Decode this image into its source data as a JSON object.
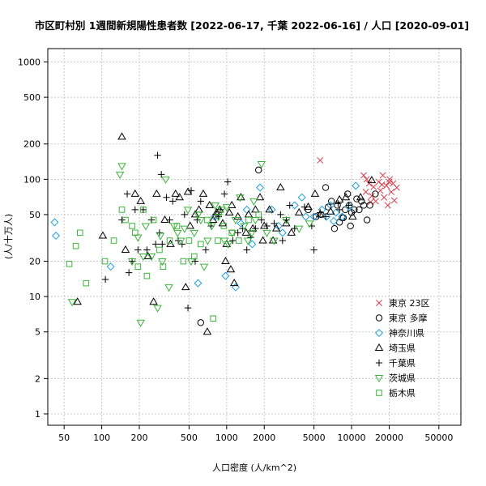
{
  "chart_data": {
    "type": "scatter",
    "title": "市区町村別 1週間新規陽性患者数 [2022-06-17, 千葉 2022-06-16] / 人口 [2020-09-01]",
    "xlabel": "人口密度 (人/km^2)",
    "ylabel": "(人/十万人)",
    "x_scale": "log",
    "y_scale": "log",
    "xlim": [
      37,
      75000
    ],
    "ylim": [
      0.8,
      1300
    ],
    "x_ticks": [
      50,
      100,
      200,
      500,
      1000,
      2000,
      5000,
      10000,
      20000,
      50000
    ],
    "x_tick_labels": [
      "50",
      "100",
      "200",
      "500",
      "1000",
      "2000",
      "5000",
      "10000",
      "20000",
      "50000"
    ],
    "y_ticks": [
      1,
      2,
      5,
      10,
      20,
      50,
      100,
      200,
      500,
      1000
    ],
    "y_tick_labels": [
      "1",
      "2",
      "5",
      "10",
      "20",
      "50",
      "100",
      "200",
      "500",
      "1000"
    ],
    "grid": true,
    "legend_position": "bottom-right",
    "series": [
      {
        "name": "東京 23区",
        "marker": "x",
        "color": "#d6404e",
        "points": [
          [
            5600,
            145
          ],
          [
            12500,
            108
          ],
          [
            13200,
            100
          ],
          [
            13800,
            92
          ],
          [
            14500,
            72
          ],
          [
            15000,
            86
          ],
          [
            15600,
            65
          ],
          [
            16500,
            95
          ],
          [
            17000,
            80
          ],
          [
            17800,
            108
          ],
          [
            18200,
            70
          ],
          [
            19000,
            88
          ],
          [
            19500,
            60
          ],
          [
            20200,
            100
          ],
          [
            20800,
            78
          ],
          [
            21500,
            92
          ],
          [
            22000,
            66
          ],
          [
            23000,
            85
          ],
          [
            13000,
            78
          ],
          [
            14200,
            64
          ],
          [
            17500,
            90
          ],
          [
            20000,
            95
          ]
        ]
      },
      {
        "name": "東京 多摩",
        "marker": "circle",
        "color": "#000000",
        "points": [
          [
            620,
            6
          ],
          [
            1800,
            120
          ],
          [
            4500,
            55
          ],
          [
            5200,
            48
          ],
          [
            5700,
            50
          ],
          [
            6200,
            85
          ],
          [
            6500,
            58
          ],
          [
            6900,
            65
          ],
          [
            7300,
            38
          ],
          [
            7700,
            60
          ],
          [
            8000,
            43
          ],
          [
            8400,
            47
          ],
          [
            8900,
            55
          ],
          [
            9300,
            75
          ],
          [
            9600,
            60
          ],
          [
            10000,
            52
          ],
          [
            10500,
            55
          ],
          [
            11000,
            68
          ],
          [
            11500,
            55
          ],
          [
            12000,
            65
          ],
          [
            12500,
            60
          ],
          [
            13300,
            45
          ],
          [
            14000,
            60
          ],
          [
            15500,
            75
          ],
          [
            9800,
            40
          ],
          [
            8600,
            47
          ]
        ]
      },
      {
        "name": "神奈川県",
        "marker": "diamond",
        "color": "#1e9ee0",
        "points": [
          [
            42,
            43
          ],
          [
            43,
            33
          ],
          [
            118,
            18
          ],
          [
            590,
            13
          ],
          [
            800,
            48
          ],
          [
            980,
            15
          ],
          [
            1180,
            12
          ],
          [
            1300,
            42
          ],
          [
            1600,
            28
          ],
          [
            1850,
            85
          ],
          [
            2300,
            55
          ],
          [
            2800,
            35
          ],
          [
            3500,
            60
          ],
          [
            4000,
            70
          ],
          [
            4300,
            48
          ],
          [
            5000,
            48
          ],
          [
            5800,
            55
          ],
          [
            6300,
            48
          ],
          [
            6800,
            60
          ],
          [
            7500,
            52
          ],
          [
            8400,
            48
          ],
          [
            9600,
            58
          ],
          [
            10800,
            88
          ],
          [
            1450,
            55
          ],
          [
            2600,
            40
          ],
          [
            7200,
            44
          ]
        ]
      },
      {
        "name": "埼玉県",
        "marker": "triangle",
        "color": "#000000",
        "points": [
          [
            64,
            9
          ],
          [
            102,
            33
          ],
          [
            145,
            230
          ],
          [
            155,
            25
          ],
          [
            185,
            75
          ],
          [
            205,
            65
          ],
          [
            235,
            22
          ],
          [
            260,
            9
          ],
          [
            275,
            75
          ],
          [
            320,
            45
          ],
          [
            355,
            28
          ],
          [
            390,
            75
          ],
          [
            420,
            70
          ],
          [
            470,
            12
          ],
          [
            490,
            78
          ],
          [
            510,
            40
          ],
          [
            560,
            50
          ],
          [
            600,
            55
          ],
          [
            650,
            75
          ],
          [
            700,
            5
          ],
          [
            730,
            60
          ],
          [
            780,
            45
          ],
          [
            830,
            52
          ],
          [
            880,
            55
          ],
          [
            930,
            42
          ],
          [
            980,
            20
          ],
          [
            1000,
            28
          ],
          [
            1050,
            52
          ],
          [
            1080,
            17
          ],
          [
            1100,
            60
          ],
          [
            1150,
            13
          ],
          [
            1230,
            48
          ],
          [
            1300,
            70
          ],
          [
            1430,
            35
          ],
          [
            1500,
            50
          ],
          [
            1620,
            38
          ],
          [
            1700,
            55
          ],
          [
            1850,
            70
          ],
          [
            2000,
            40
          ],
          [
            2200,
            55
          ],
          [
            2500,
            38
          ],
          [
            2700,
            85
          ],
          [
            3000,
            42
          ],
          [
            3300,
            35
          ],
          [
            3800,
            52
          ],
          [
            4500,
            58
          ],
          [
            5100,
            75
          ],
          [
            5600,
            50
          ],
          [
            6800,
            53
          ],
          [
            8000,
            67
          ],
          [
            9000,
            70
          ],
          [
            10200,
            48
          ],
          [
            11800,
            70
          ],
          [
            14500,
            98
          ],
          [
            1950,
            30
          ],
          [
            2350,
            30
          ]
        ]
      },
      {
        "name": "千葉県",
        "marker": "plus",
        "color": "#000000",
        "points": [
          [
            107,
            14
          ],
          [
            145,
            45
          ],
          [
            160,
            75
          ],
          [
            165,
            16
          ],
          [
            175,
            20
          ],
          [
            185,
            55
          ],
          [
            195,
            25
          ],
          [
            215,
            55
          ],
          [
            230,
            25
          ],
          [
            250,
            45
          ],
          [
            270,
            28
          ],
          [
            280,
            160
          ],
          [
            290,
            35
          ],
          [
            305,
            28
          ],
          [
            330,
            70
          ],
          [
            350,
            45
          ],
          [
            370,
            65
          ],
          [
            410,
            30
          ],
          [
            440,
            28
          ],
          [
            460,
            50
          ],
          [
            490,
            8
          ],
          [
            520,
            80
          ],
          [
            560,
            20
          ],
          [
            620,
            65
          ],
          [
            680,
            25
          ],
          [
            750,
            40
          ],
          [
            820,
            50
          ],
          [
            890,
            55
          ],
          [
            960,
            75
          ],
          [
            1020,
            95
          ],
          [
            1120,
            30
          ],
          [
            1230,
            35
          ],
          [
            1340,
            38
          ],
          [
            1450,
            25
          ],
          [
            1560,
            32
          ],
          [
            1700,
            38
          ],
          [
            1900,
            45
          ],
          [
            2100,
            40
          ],
          [
            2400,
            42
          ],
          [
            2700,
            50
          ],
          [
            3000,
            45
          ],
          [
            3500,
            38
          ],
          [
            4200,
            58
          ],
          [
            5000,
            25
          ],
          [
            6200,
            48
          ],
          [
            8000,
            55
          ],
          [
            9500,
            60
          ],
          [
            5600,
            52
          ],
          [
            7800,
            62
          ],
          [
            4800,
            40
          ],
          [
            3200,
            60
          ],
          [
            2800,
            30
          ],
          [
            860,
            48
          ],
          [
            580,
            45
          ],
          [
            300,
            110
          ]
        ]
      },
      {
        "name": "茨城県",
        "marker": "triangle-down",
        "color": "#3cb43c",
        "points": [
          [
            58,
            9
          ],
          [
            140,
            110
          ],
          [
            145,
            130
          ],
          [
            175,
            20
          ],
          [
            195,
            32
          ],
          [
            205,
            6
          ],
          [
            215,
            22
          ],
          [
            225,
            40
          ],
          [
            250,
            22
          ],
          [
            280,
            8
          ],
          [
            295,
            33
          ],
          [
            305,
            20
          ],
          [
            325,
            100
          ],
          [
            345,
            12
          ],
          [
            380,
            40
          ],
          [
            405,
            35
          ],
          [
            430,
            30
          ],
          [
            460,
            38
          ],
          [
            490,
            55
          ],
          [
            520,
            20
          ],
          [
            550,
            35
          ],
          [
            590,
            50
          ],
          [
            620,
            45
          ],
          [
            660,
            18
          ],
          [
            705,
            30
          ],
          [
            760,
            40
          ],
          [
            810,
            60
          ],
          [
            860,
            48
          ],
          [
            910,
            55
          ],
          [
            960,
            30
          ],
          [
            1030,
            28
          ],
          [
            1110,
            35
          ],
          [
            1180,
            45
          ],
          [
            1280,
            70
          ],
          [
            1380,
            40
          ],
          [
            1480,
            30
          ],
          [
            1590,
            35
          ],
          [
            1700,
            45
          ],
          [
            1900,
            135
          ],
          [
            2100,
            35
          ],
          [
            2400,
            30
          ],
          [
            3000,
            45
          ],
          [
            3800,
            38
          ],
          [
            4600,
            42
          ],
          [
            1000,
            58
          ],
          [
            1650,
            65
          ]
        ]
      },
      {
        "name": "栃木県",
        "marker": "square",
        "color": "#3cb43c",
        "points": [
          [
            55,
            19
          ],
          [
            62,
            27
          ],
          [
            67,
            35
          ],
          [
            75,
            13
          ],
          [
            106,
            20
          ],
          [
            125,
            30
          ],
          [
            145,
            55
          ],
          [
            155,
            45
          ],
          [
            175,
            40
          ],
          [
            185,
            35
          ],
          [
            195,
            18
          ],
          [
            215,
            55
          ],
          [
            230,
            15
          ],
          [
            260,
            45
          ],
          [
            290,
            25
          ],
          [
            310,
            18
          ],
          [
            350,
            30
          ],
          [
            400,
            40
          ],
          [
            450,
            20
          ],
          [
            500,
            30
          ],
          [
            550,
            22
          ],
          [
            620,
            28
          ],
          [
            700,
            45
          ],
          [
            780,
            6.5
          ],
          [
            850,
            30
          ],
          [
            950,
            40
          ],
          [
            1100,
            35
          ],
          [
            1250,
            30
          ],
          [
            1500,
            45
          ],
          [
            1800,
            50
          ]
        ]
      }
    ]
  }
}
